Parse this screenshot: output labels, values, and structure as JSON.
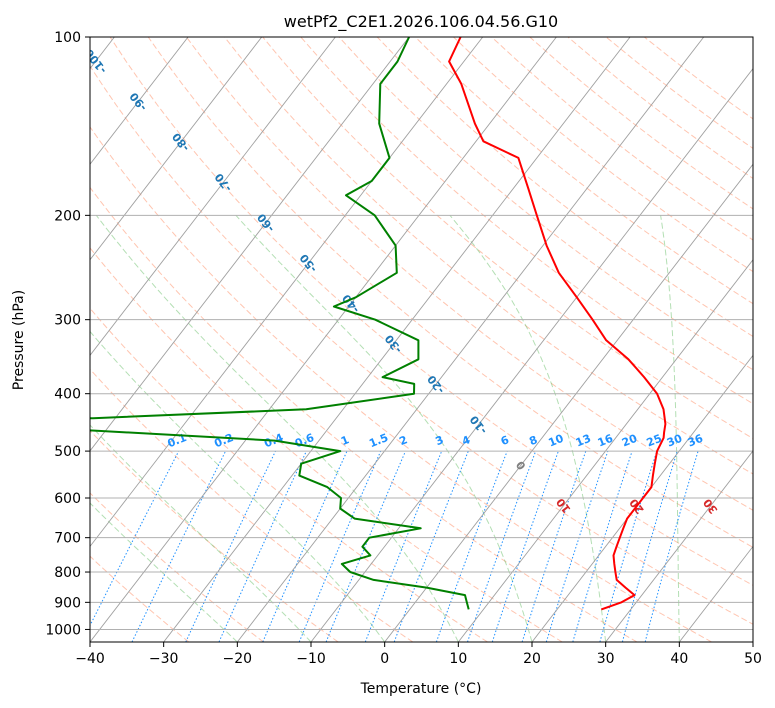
{
  "chart_data": {
    "type": "line",
    "title": "wetPf2_C2E1.2026.106.04.56.G10",
    "xlabel": "Temperature (°C)",
    "ylabel": "Pressure (hPa)",
    "xlim": [
      -40,
      50
    ],
    "ylim": [
      1050,
      100
    ],
    "xticks": [
      "−40",
      "−30",
      "−20",
      "−10",
      "0",
      "10",
      "20",
      "30",
      "40",
      "50"
    ],
    "yticks": [
      "100",
      "200",
      "300",
      "400",
      "500",
      "600",
      "700",
      "800",
      "900",
      "1000"
    ],
    "ytick_values": [
      100,
      200,
      300,
      400,
      500,
      600,
      700,
      800,
      900,
      1000
    ],
    "skew_per_decade": 62,
    "series": [
      {
        "name": "Temperature",
        "color": "#ff0000",
        "points": [
          [
            26,
            925
          ],
          [
            28,
            900
          ],
          [
            29,
            875
          ],
          [
            27,
            850
          ],
          [
            25,
            825
          ],
          [
            24,
            800
          ],
          [
            23,
            775
          ],
          [
            22,
            750
          ],
          [
            21.5,
            725
          ],
          [
            21,
            700
          ],
          [
            20.5,
            675
          ],
          [
            20,
            650
          ],
          [
            20,
            625
          ],
          [
            20,
            600
          ],
          [
            20,
            575
          ],
          [
            19,
            550
          ],
          [
            18,
            525
          ],
          [
            17,
            500
          ],
          [
            16.5,
            475
          ],
          [
            16,
            465
          ],
          [
            15.3,
            450
          ],
          [
            13.5,
            425
          ],
          [
            11,
            400
          ],
          [
            7.5,
            375
          ],
          [
            3.5,
            350
          ],
          [
            -1.5,
            325
          ],
          [
            -5.5,
            300
          ],
          [
            -10,
            275
          ],
          [
            -15,
            250
          ],
          [
            -19.5,
            225
          ],
          [
            -24,
            200
          ],
          [
            -28,
            180
          ],
          [
            -32.5,
            160
          ],
          [
            -39,
            150
          ],
          [
            -42,
            140
          ],
          [
            -48,
            120
          ],
          [
            -52,
            110
          ],
          [
            -53,
            100
          ]
        ]
      },
      {
        "name": "Dewpoint",
        "color": "#008000",
        "points": [
          [
            8,
            925
          ],
          [
            7,
            900
          ],
          [
            6,
            875
          ],
          [
            0,
            850
          ],
          [
            -8,
            825
          ],
          [
            -12,
            800
          ],
          [
            -14,
            775
          ],
          [
            -11,
            750
          ],
          [
            -13,
            725
          ],
          [
            -13,
            700
          ],
          [
            -7,
            675
          ],
          [
            -17,
            650
          ],
          [
            -20,
            625
          ],
          [
            -21,
            600
          ],
          [
            -24,
            575
          ],
          [
            -29,
            550
          ],
          [
            -30,
            525
          ],
          [
            -26,
            500
          ],
          [
            -36,
            480
          ],
          [
            -64,
            460
          ],
          [
            -90,
            450
          ],
          [
            -63,
            440
          ],
          [
            -35,
            425
          ],
          [
            -22,
            400
          ],
          [
            -23,
            385
          ],
          [
            -28,
            375
          ],
          [
            -25,
            350
          ],
          [
            -27,
            325
          ],
          [
            -35,
            300
          ],
          [
            -42,
            285
          ],
          [
            -40,
            275
          ],
          [
            -37,
            250
          ],
          [
            -40,
            225
          ],
          [
            -46,
            200
          ],
          [
            -52,
            185
          ],
          [
            -50,
            175
          ],
          [
            -50,
            160
          ],
          [
            -55,
            140
          ],
          [
            -59,
            120
          ],
          [
            -59,
            110
          ],
          [
            -60,
            100
          ]
        ]
      }
    ],
    "dry_adiabats_C": [
      -30,
      -20,
      -10,
      0,
      10,
      20,
      30,
      40,
      50,
      60,
      70,
      80,
      90,
      100,
      110,
      120,
      130,
      140,
      150,
      160,
      170,
      180,
      190,
      200
    ],
    "moist_adiabats_C": [
      -20,
      -10,
      0,
      10,
      20,
      30,
      40
    ],
    "mixing_ratio_lines": [
      0.1,
      0.2,
      0.4,
      0.6,
      1,
      1.5,
      2,
      3,
      4,
      6,
      8,
      10,
      13,
      16,
      20,
      25,
      30,
      36
    ],
    "mixing_ratio_labels": [
      "0.1",
      "0.2",
      "0.4",
      "0.6",
      "1",
      "1.5",
      "2",
      "3",
      "4",
      "6",
      "8",
      "10",
      "13",
      "16",
      "20",
      "25",
      "30",
      "36"
    ],
    "isotherm_labels": [
      {
        "text": "-100",
        "t": -100
      },
      {
        "text": "-90",
        "t": -90
      },
      {
        "text": "-80",
        "t": -80
      },
      {
        "text": "-70",
        "t": -70
      },
      {
        "text": "-60",
        "t": -60
      },
      {
        "text": "-50",
        "t": -50
      },
      {
        "text": "-40",
        "t": -40
      },
      {
        "text": "-30",
        "t": -30
      },
      {
        "text": "-20",
        "t": -20
      },
      {
        "text": "-10",
        "t": -10
      },
      {
        "text": "0",
        "t": 0
      },
      {
        "text": "10",
        "t": 10
      },
      {
        "text": "20",
        "t": 20
      },
      {
        "text": "30",
        "t": 30
      },
      {
        "text": "40",
        "t": 40
      }
    ],
    "colors": {
      "isotherm_cold": "#1f77b4",
      "isotherm_zero": "#808080",
      "isotherm_warm": "#d62728",
      "mixing_ratio": "#1e90ff",
      "dry_adiabat": "#ff7f50",
      "moist_adiabat": "#6abf69",
      "skew_grid": "#a0a0a0",
      "horizontal_grid": "#b0b0b0"
    }
  }
}
